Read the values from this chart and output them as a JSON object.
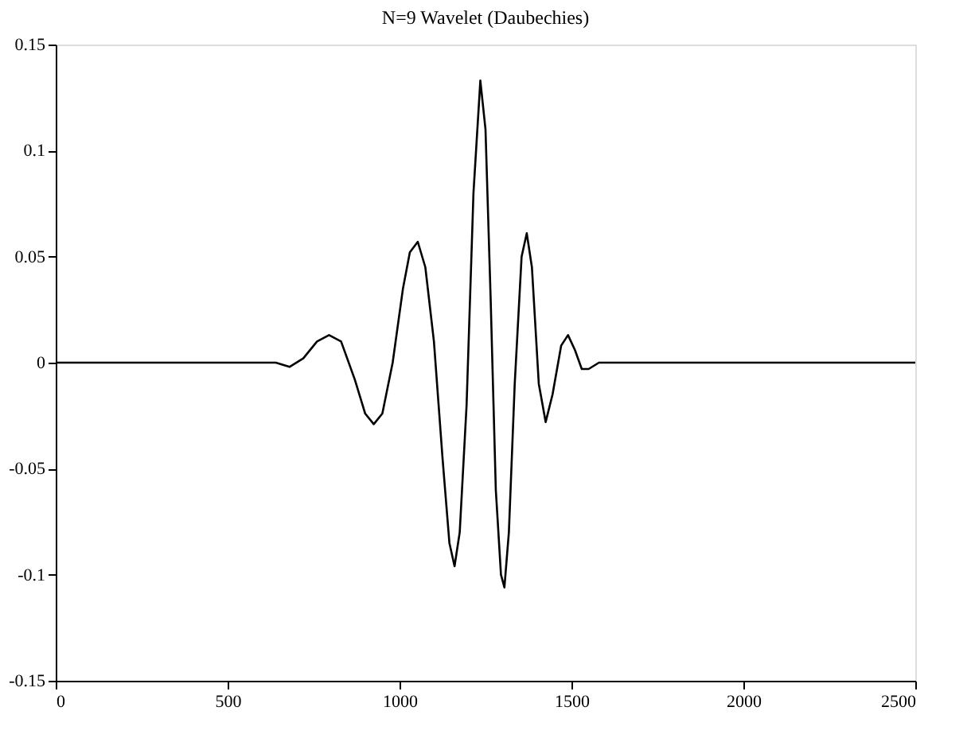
{
  "chart_data": {
    "type": "line",
    "title": "N=9 Wavelet (Daubechies)",
    "x": [
      0,
      600,
      640,
      680,
      720,
      760,
      795,
      830,
      870,
      900,
      925,
      950,
      980,
      1010,
      1030,
      1053,
      1075,
      1100,
      1125,
      1145,
      1160,
      1175,
      1195,
      1215,
      1235,
      1250,
      1265,
      1280,
      1295,
      1305,
      1318,
      1335,
      1355,
      1370,
      1385,
      1405,
      1425,
      1445,
      1470,
      1490,
      1510,
      1530,
      1550,
      1580,
      2500
    ],
    "series": [
      {
        "color": "#000000",
        "values": [
          0,
          0,
          0,
          -0.002,
          0.002,
          0.01,
          0.013,
          0.01,
          -0.008,
          -0.024,
          -0.029,
          -0.024,
          0,
          0.035,
          0.052,
          0.057,
          0.045,
          0.01,
          -0.045,
          -0.085,
          -0.096,
          -0.08,
          -0.02,
          0.08,
          0.133,
          0.11,
          0.03,
          -0.06,
          -0.1,
          -0.106,
          -0.08,
          -0.01,
          0.05,
          0.061,
          0.045,
          -0.01,
          -0.028,
          -0.015,
          0.008,
          0.013,
          0.006,
          -0.003,
          -0.003,
          0,
          0
        ]
      }
    ],
    "xlim": [
      0,
      2500
    ],
    "xticks": [
      0,
      500,
      1000,
      1500,
      2000,
      2500
    ],
    "ylim": [
      -0.15,
      0.15
    ],
    "yticks": [
      -0.15,
      -0.1,
      -0.05,
      0,
      0.05,
      0.1,
      0.15
    ],
    "grid": false,
    "marker": "none",
    "line_style": "solid"
  }
}
